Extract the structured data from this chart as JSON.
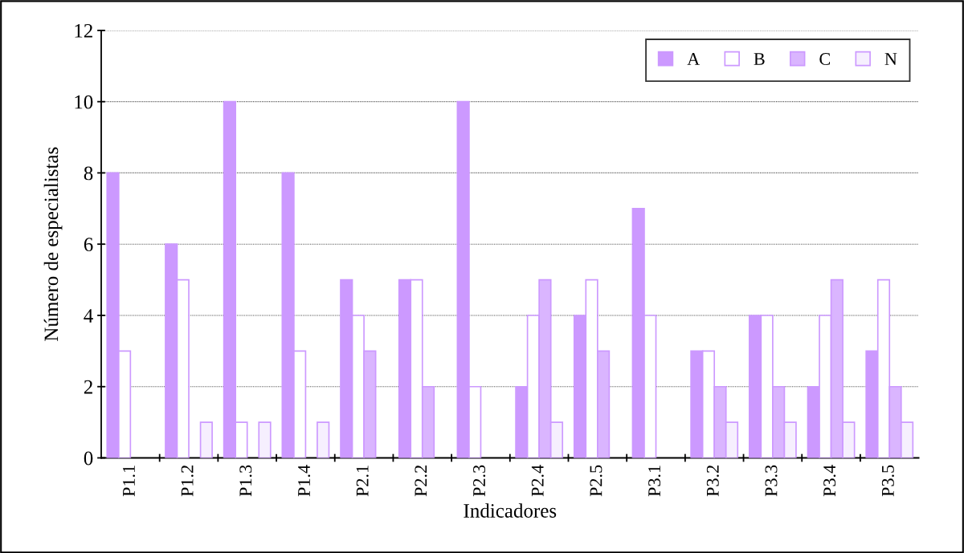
{
  "chart_data": {
    "type": "bar",
    "xlabel": "Indicadores",
    "ylabel": "Número de especialistas",
    "categories": [
      "P1.1",
      "P1.2",
      "P1.3",
      "P1.4",
      "P2.1",
      "P2.2",
      "P2.3",
      "P2.4",
      "P2.5",
      "P3.1",
      "P3.2",
      "P3.3",
      "P3.4",
      "P3.5"
    ],
    "series": [
      {
        "name": "A",
        "color": "#cc99ff",
        "values": [
          8,
          6,
          10,
          8,
          5,
          5,
          10,
          2,
          4,
          7,
          3,
          4,
          2,
          3
        ]
      },
      {
        "name": "B",
        "color": "#ffffff",
        "values": [
          3,
          5,
          1,
          3,
          4,
          5,
          2,
          4,
          5,
          4,
          3,
          4,
          4,
          5
        ]
      },
      {
        "name": "C",
        "color": "#dab5ff",
        "values": [
          0,
          0,
          0,
          0,
          3,
          2,
          0,
          5,
          3,
          0,
          2,
          2,
          5,
          2
        ]
      },
      {
        "name": "N",
        "color": "#f6effe",
        "values": [
          0,
          1,
          1,
          1,
          0,
          0,
          0,
          1,
          0,
          0,
          1,
          1,
          1,
          1
        ]
      }
    ],
    "ylim": [
      0,
      12
    ],
    "yticks": [
      0,
      2,
      4,
      6,
      8,
      10,
      12
    ],
    "grid": "y",
    "legend": "top right"
  }
}
